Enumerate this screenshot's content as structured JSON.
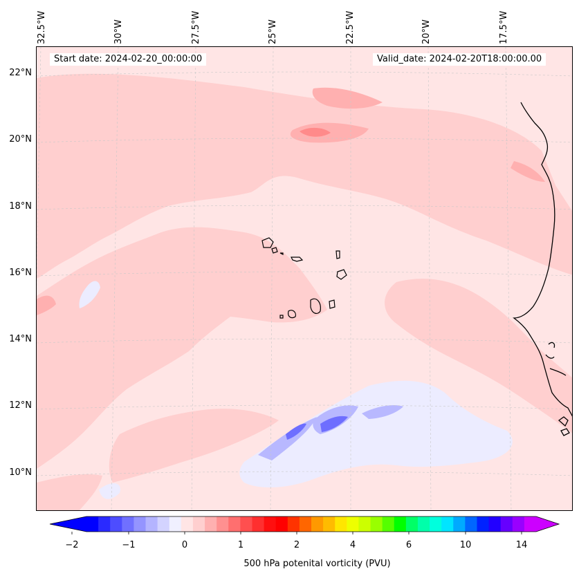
{
  "header": {
    "start_date": "Start date: 2024-02-20_00:00:00",
    "valid_date": "Valid_date: 2024-02-20T18:00:00.00"
  },
  "latitudes": [
    "22°N",
    "20°N",
    "18°N",
    "16°N",
    "14°N",
    "12°N",
    "10°N"
  ],
  "longitudes": [
    "32.5°W",
    "30°W",
    "27.5°W",
    "25°W",
    "22.5°W",
    "20°W",
    "17.5°W"
  ],
  "colorbar": {
    "label": "500 hPa potenital vorticity (PVU)",
    "ticks": [
      "−2",
      "−1",
      "0",
      "1",
      "2",
      "4",
      "6",
      "10",
      "14"
    ],
    "colors": [
      "#0000ff",
      "#2a2aff",
      "#4d4dff",
      "#7070ff",
      "#9494ff",
      "#b4b4ff",
      "#d3d3ff",
      "#f0f0ff",
      "#ffe5e5",
      "#ffcfcf",
      "#ffb0b0",
      "#ff9090",
      "#ff6f6f",
      "#ff4f4f",
      "#ff2f2f",
      "#ff0f0f",
      "#ff0000",
      "#ff3300",
      "#ff6600",
      "#ff9900",
      "#ffbb00",
      "#ffe600",
      "#eeff00",
      "#ccff00",
      "#99ff00",
      "#55ff00",
      "#00ff00",
      "#00ff66",
      "#00ffaa",
      "#00ffdd",
      "#00e5ff",
      "#00aaff",
      "#0066ff",
      "#0022ff",
      "#2200ff",
      "#6600ff",
      "#9900ff",
      "#cc00ff"
    ],
    "extend_min_color": "#0000ff",
    "extend_max_color": "#cc00ff"
  },
  "colors": {
    "background_pv": "#ffe5e5",
    "pv_light": "#ffcfcf",
    "pv_medium": "#ffb0b0",
    "pv_high": "#ff8a8a",
    "pv_peak": "#ff4040",
    "pv_negative_light": "#ececff",
    "pv_negative_medium": "#b8b8ff",
    "pv_negative_strong": "#6e6eff",
    "coastline": "#000000"
  }
}
